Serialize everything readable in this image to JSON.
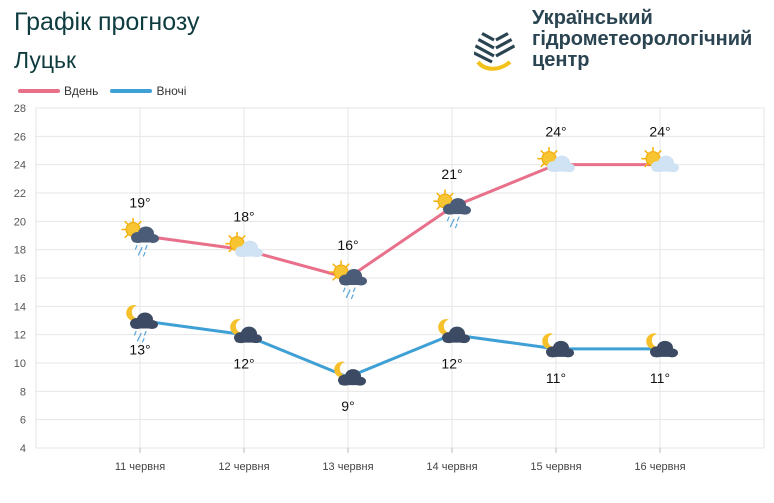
{
  "header": {
    "title": "Графік прогнозу",
    "city": "Луцьк"
  },
  "logo": {
    "lines": [
      "Український",
      "гідрометеорологічний",
      "центр"
    ]
  },
  "chart_data": {
    "type": "line",
    "title": "Графік прогнозу",
    "subtitle": "Луцьк",
    "xlabel": "",
    "ylabel": "",
    "categories": [
      "11 червня",
      "12 червня",
      "13 червня",
      "14 червня",
      "15 червня",
      "16 червня"
    ],
    "ylim": [
      4,
      28
    ],
    "yticks": [
      4,
      6,
      8,
      10,
      12,
      14,
      16,
      18,
      20,
      22,
      24,
      26,
      28
    ],
    "grid": true,
    "legend_position": "top-left",
    "series": [
      {
        "name": "Вдень",
        "color": "#e8708a",
        "values": [
          19,
          18,
          16,
          21,
          24,
          24
        ],
        "labels": [
          "19°",
          "18°",
          "16°",
          "21°",
          "24°",
          "24°"
        ],
        "icons": [
          "sun-cloud-rain-icon",
          "sun-cloud-icon",
          "sun-cloud-rain-icon",
          "sun-cloud-rain-icon",
          "sun-cloud-icon",
          "sun-cloud-icon"
        ]
      },
      {
        "name": "Вночі",
        "color": "#3fa0d6",
        "values": [
          13,
          12,
          9,
          12,
          11,
          11
        ],
        "labels": [
          "13°",
          "12°",
          "9°",
          "12°",
          "11°",
          "11°"
        ],
        "icons": [
          "moon-cloud-rain-icon",
          "moon-cloud-icon",
          "moon-cloud-icon",
          "moon-cloud-icon",
          "moon-cloud-icon",
          "moon-cloud-icon"
        ]
      }
    ]
  }
}
